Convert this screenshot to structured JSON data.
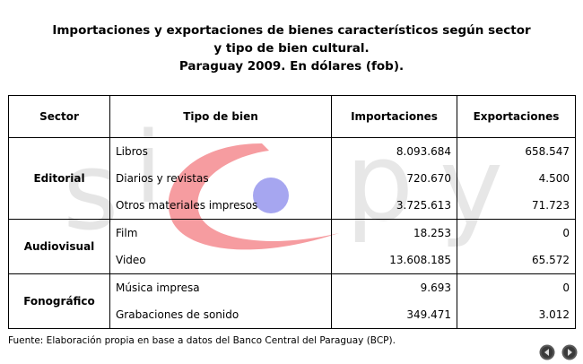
{
  "title": {
    "line1": "Importaciones y exportaciones de bienes característicos según sector",
    "line2": "y tipo de bien cultural.",
    "line3": "Paraguay 2009. En dólares (fob)."
  },
  "table": {
    "headers": [
      "Sector",
      "Tipo de bien",
      "Importaciones",
      "Exportaciones"
    ],
    "groups": [
      {
        "sector": "Editorial",
        "rows": [
          {
            "tipo": "Libros",
            "importaciones": "8.093.684",
            "exportaciones": "658.547"
          },
          {
            "tipo": "Diarios y revistas",
            "importaciones": "720.670",
            "exportaciones": "4.500"
          },
          {
            "tipo": "Otros materiales impresos",
            "importaciones": "3.725.613",
            "exportaciones": "71.723"
          }
        ]
      },
      {
        "sector": "Audiovisual",
        "rows": [
          {
            "tipo": "Film",
            "importaciones": "18.253",
            "exportaciones": "0"
          },
          {
            "tipo": "Video",
            "importaciones": "13.608.185",
            "exportaciones": "65.572"
          }
        ]
      },
      {
        "sector": "Fonográfico",
        "rows": [
          {
            "tipo": "Música impresa",
            "importaciones": "9.693",
            "exportaciones": "0"
          },
          {
            "tipo": "Grabaciones de sonido",
            "importaciones": "349.471",
            "exportaciones": "3.012"
          }
        ]
      }
    ]
  },
  "watermark": {
    "text": "sicpy",
    "colors": {
      "swoosh": "#ee4b52",
      "dot": "#6a6ae6",
      "letters": "#c8c8c8"
    }
  },
  "footer": {
    "fuente": "Fuente: Elaboración propia en base a datos del Banco Central del Paraguay (BCP)."
  },
  "nav": {
    "prev_icon": "arrow-left-icon",
    "next_icon": "arrow-right-icon"
  }
}
